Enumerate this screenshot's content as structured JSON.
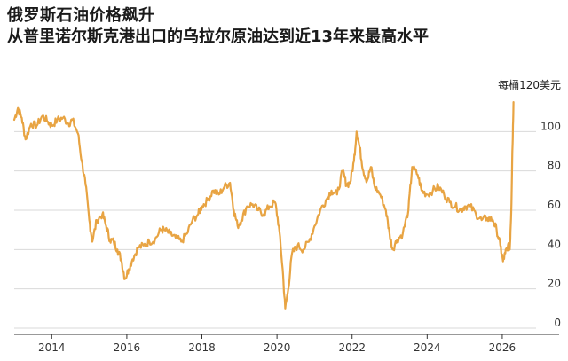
{
  "title": "俄罗斯石油价格飙升",
  "subtitle": "从普里诺尔斯克港出口的乌拉尔原油达到近13年来最高水平",
  "chart_data": {
    "type": "line",
    "title": "俄罗斯石油价格飙升",
    "subtitle": "从普里诺尔斯克港出口的乌拉尔原油达到近13年来最高水平",
    "unit_label": "每桶120美元",
    "xlabel": "",
    "ylabel": "",
    "xlim": [
      2013.0,
      2026.9
    ],
    "ylim": [
      0,
      120
    ],
    "y_ticks": [
      0,
      20,
      40,
      60,
      80,
      100
    ],
    "y_tick_labels": [
      "0",
      "20",
      "40",
      "60",
      "80",
      "100"
    ],
    "x_ticks": [
      2014,
      2016,
      2018,
      2020,
      2022,
      2024,
      2026
    ],
    "x_tick_labels": [
      "2014",
      "2016",
      "2018",
      "2020",
      "2022",
      "2024",
      "2026"
    ],
    "grid": "horizontal",
    "line_color": "#e8a443",
    "series": [
      {
        "x": [
          2013.0,
          2013.1,
          2013.2,
          2013.3,
          2013.45,
          2013.6,
          2013.75,
          2013.9,
          2014.0,
          2014.15,
          2014.3,
          2014.45,
          2014.55,
          2014.7,
          2014.8,
          2014.9,
          2015.0,
          2015.08,
          2015.2,
          2015.35,
          2015.45,
          2015.55,
          2015.65,
          2015.75,
          2015.85,
          2015.95,
          2016.05,
          2016.15,
          2016.3,
          2016.45,
          2016.6,
          2016.75,
          2016.9,
          2017.0,
          2017.15,
          2017.3,
          2017.45,
          2017.6,
          2017.75,
          2017.9,
          2018.0,
          2018.15,
          2018.3,
          2018.45,
          2018.6,
          2018.75,
          2018.85,
          2018.95,
          2019.05,
          2019.2,
          2019.35,
          2019.5,
          2019.65,
          2019.8,
          2019.95,
          2020.05,
          2020.15,
          2020.22,
          2020.3,
          2020.4,
          2020.55,
          2020.7,
          2020.85,
          2021.0,
          2021.15,
          2021.3,
          2021.45,
          2021.6,
          2021.75,
          2021.85,
          2021.95,
          2022.05,
          2022.12,
          2022.2,
          2022.3,
          2022.4,
          2022.5,
          2022.6,
          2022.75,
          2022.9,
          2023.0,
          2023.08,
          2023.2,
          2023.35,
          2023.5,
          2023.6,
          2023.75,
          2023.85,
          2024.0,
          2024.15,
          2024.3,
          2024.45,
          2024.6,
          2024.75,
          2024.9,
          2025.0,
          2025.15,
          2025.3,
          2025.45,
          2025.6,
          2025.75,
          2025.85,
          2025.95,
          2026.02,
          2026.08,
          2026.15,
          2026.2,
          2026.24,
          2026.27,
          2026.3
        ],
        "y": [
          106,
          112,
          107,
          96,
          104,
          103,
          108,
          105,
          103,
          106,
          107,
          104,
          106,
          99,
          85,
          73,
          55,
          44,
          55,
          58,
          52,
          45,
          44,
          40,
          35,
          25,
          30,
          35,
          41,
          42,
          44,
          45,
          50,
          50,
          48,
          46,
          44,
          48,
          55,
          58,
          62,
          65,
          70,
          68,
          72,
          74,
          60,
          52,
          55,
          62,
          63,
          60,
          58,
          62,
          64,
          52,
          30,
          10,
          20,
          38,
          42,
          40,
          44,
          52,
          60,
          65,
          70,
          68,
          80,
          73,
          74,
          85,
          100,
          92,
          80,
          75,
          82,
          72,
          68,
          60,
          48,
          40,
          45,
          48,
          60,
          82,
          78,
          70,
          68,
          70,
          72,
          68,
          64,
          62,
          60,
          62,
          62,
          58,
          55,
          56,
          55,
          50,
          42,
          34,
          38,
          42,
          40,
          60,
          90,
          115
        ]
      }
    ]
  }
}
